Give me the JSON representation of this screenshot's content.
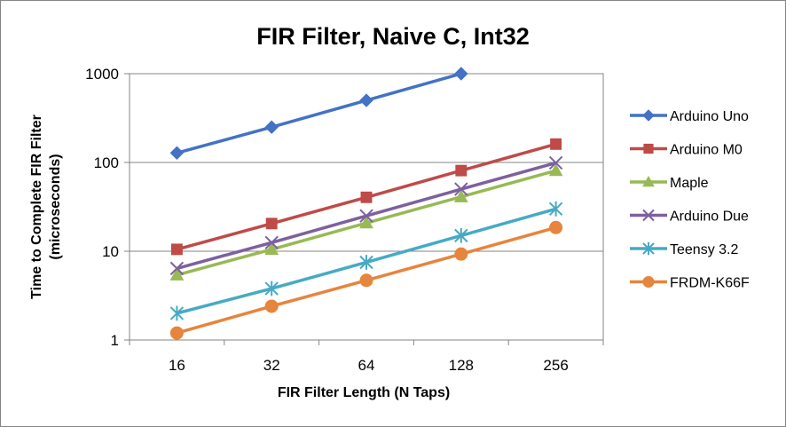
{
  "chart_data": {
    "type": "line",
    "title": "FIR Filter, Naive C, Int32",
    "xlabel": "FIR Filter Length (N Taps)",
    "ylabel": [
      "Time to Complete FIR Filter",
      "(microseconds)"
    ],
    "categories": [
      "16",
      "32",
      "64",
      "128",
      "256"
    ],
    "y_scale": "log",
    "ylim": [
      1,
      1000
    ],
    "y_ticks": [
      "1",
      "10",
      "100",
      "1000"
    ],
    "grid": true,
    "legend_position": "right",
    "series": [
      {
        "name": "Arduino Uno",
        "color": "#4472C4",
        "marker": "diamond",
        "values": [
          128,
          250,
          500,
          1000,
          null
        ]
      },
      {
        "name": "Arduino M0",
        "color": "#BE4B48",
        "marker": "square",
        "values": [
          10.5,
          20.5,
          40.5,
          81,
          161
        ]
      },
      {
        "name": "Maple",
        "color": "#98B954",
        "marker": "triangle",
        "values": [
          5.4,
          10.5,
          20.8,
          41,
          81
        ]
      },
      {
        "name": "Arduino Due",
        "color": "#7D60A0",
        "marker": "x",
        "values": [
          6.4,
          12.5,
          25,
          50,
          99
        ]
      },
      {
        "name": "Teensy 3.2",
        "color": "#46AAC5",
        "marker": "star",
        "values": [
          2.0,
          3.8,
          7.5,
          15,
          30
        ]
      },
      {
        "name": "FRDM-K66F",
        "color": "#E6853D",
        "marker": "circle",
        "values": [
          1.2,
          2.4,
          4.7,
          9.3,
          18.5
        ]
      }
    ]
  }
}
